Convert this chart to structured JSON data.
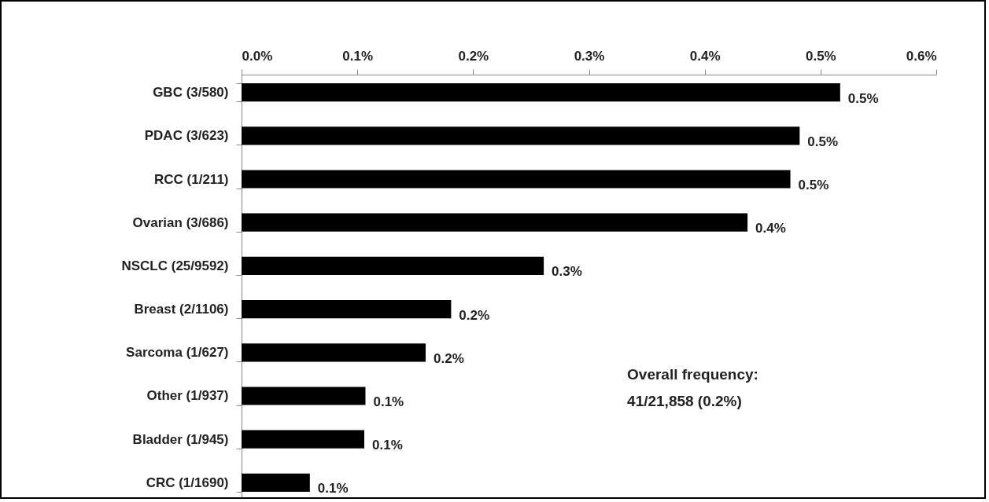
{
  "chart_data": {
    "type": "bar",
    "orientation": "horizontal",
    "categories": [
      "GBC (3/580)",
      "PDAC (3/623)",
      "RCC (1/211)",
      "Ovarian (3/686)",
      "NSCLC (25/9592)",
      "Breast (2/1106)",
      "Sarcoma (1/627)",
      "Other (1/937)",
      "Bladder (1/945)",
      "CRC (1/1690)"
    ],
    "values": [
      0.517,
      0.482,
      0.474,
      0.437,
      0.261,
      0.181,
      0.159,
      0.107,
      0.106,
      0.059
    ],
    "value_labels": [
      "0.5%",
      "0.5%",
      "0.5%",
      "0.4%",
      "0.3%",
      "0.2%",
      "0.2%",
      "0.1%",
      "0.1%",
      "0.1%"
    ],
    "color": "#000000",
    "xlim": [
      0,
      0.6
    ],
    "xticks": [
      {
        "value": 0,
        "label": "0.0%"
      },
      {
        "value": 0.1,
        "label": "0.1%"
      },
      {
        "value": 0.2,
        "label": "0.2%"
      },
      {
        "value": 0.3,
        "label": "0.3%"
      },
      {
        "value": 0.4,
        "label": "0.4%"
      },
      {
        "value": 0.5,
        "label": "0.5%"
      },
      {
        "value": 0.6,
        "label": "0.6%"
      }
    ],
    "grid": false,
    "annotations": [
      "Overall frequency:",
      "41/21,858 (0.2%)"
    ]
  }
}
